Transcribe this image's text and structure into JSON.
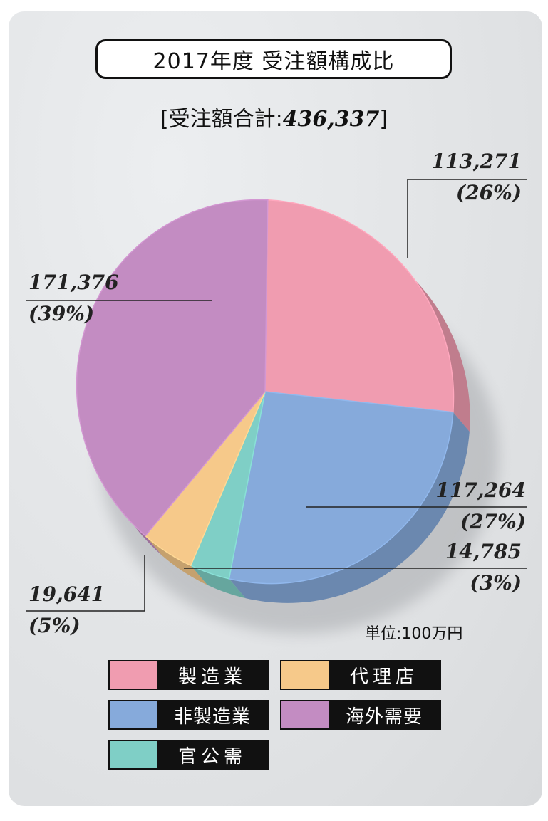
{
  "title": "2017年度 受注額構成比",
  "subtitle_prefix": "[受注額合計:",
  "subtitle_total": "436,337",
  "subtitle_suffix": "]",
  "unit_label": "単位:100万円",
  "colors": {
    "manufacturing": "#f09cb0",
    "non_manufacturing": "#86aadb",
    "public": "#7fcfc6",
    "agency": "#f6c98a",
    "overseas": "#c38cc2"
  },
  "chart_data": {
    "type": "pie",
    "title": "2017年度 受注額構成比",
    "total": 436337,
    "unit": "100万円",
    "slices": [
      {
        "name": "製造業",
        "value": 113271,
        "percent": 26,
        "value_label": "113,271",
        "percent_label": "(26%)",
        "color": "#f09cb0"
      },
      {
        "name": "非製造業",
        "value": 117264,
        "percent": 27,
        "value_label": "117,264",
        "percent_label": "(27%)",
        "color": "#86aadb"
      },
      {
        "name": "官公需",
        "value": 14785,
        "percent": 3,
        "value_label": "14,785",
        "percent_label": "(3%)",
        "color": "#7fcfc6"
      },
      {
        "name": "代理店",
        "value": 19641,
        "percent": 5,
        "value_label": "19,641",
        "percent_label": "(5%)",
        "color": "#f6c98a"
      },
      {
        "name": "海外需要",
        "value": 171376,
        "percent": 39,
        "value_label": "171,376",
        "percent_label": "(39%)",
        "color": "#c38cc2"
      }
    ],
    "legend": [
      "製造業",
      "代理店",
      "非製造業",
      "海外需要",
      "官公需"
    ]
  }
}
